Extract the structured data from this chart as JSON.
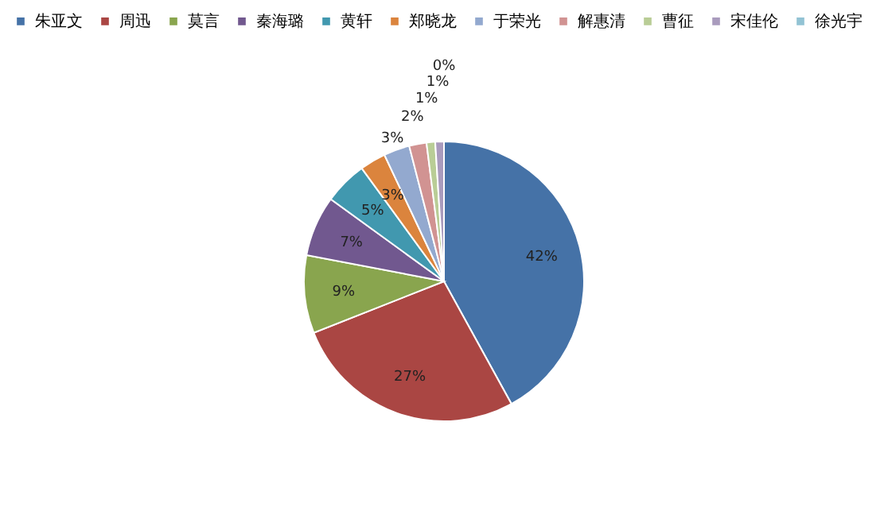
{
  "chart_data": {
    "type": "pie",
    "categories": [
      "朱亚文",
      "周迅",
      "莫言",
      "秦海璐",
      "黄轩",
      "郑晓龙",
      "于荣光",
      "解惠清",
      "曹征",
      "宋佳伦",
      "徐光宇"
    ],
    "values": [
      42,
      27,
      9,
      7,
      5,
      3,
      3,
      2,
      1,
      1,
      0
    ],
    "value_labels": [
      "42%",
      "27%",
      "9%",
      "7%",
      "5%",
      "3%",
      "3%",
      "2%",
      "1%",
      "1%",
      "0%"
    ],
    "colors": [
      "#4572a7",
      "#aa4643",
      "#89a54e",
      "#71588f",
      "#4198af",
      "#db843d",
      "#93a9cf",
      "#d19392",
      "#b9cd96",
      "#a99bbd",
      "#92c3d4"
    ],
    "legend": "top"
  }
}
